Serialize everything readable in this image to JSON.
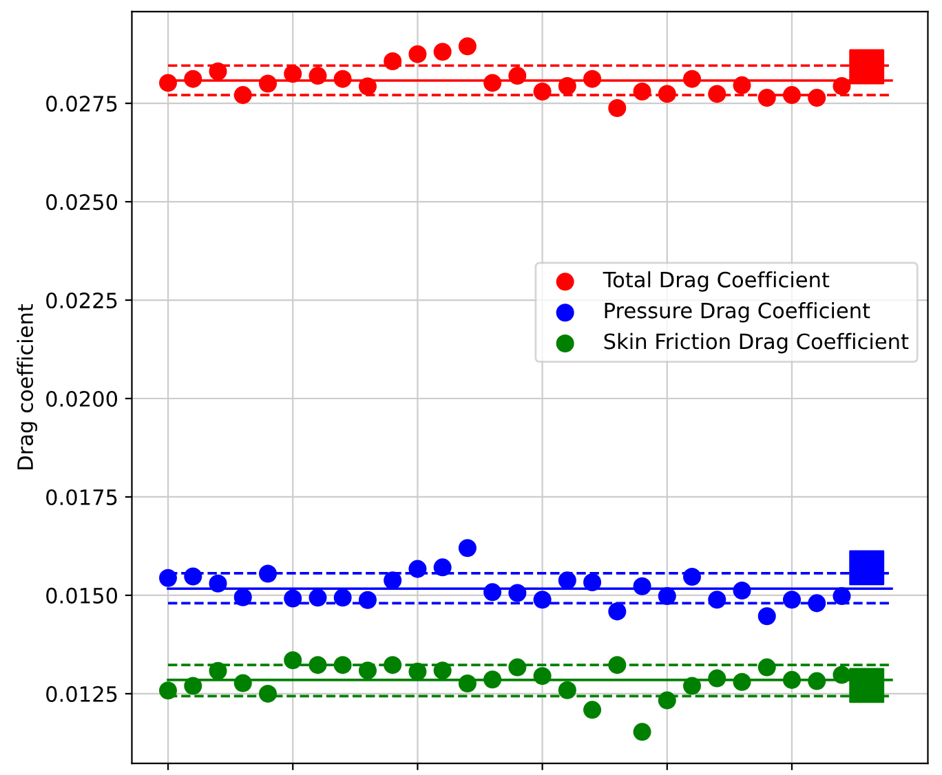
{
  "chart_data": {
    "type": "scatter",
    "ylabel": "Drag coefficient",
    "ylim": [
      0.01073,
      0.02983
    ],
    "yticks": [
      {
        "value": 0.0125,
        "label": "0.0125"
      },
      {
        "value": 0.015,
        "label": "0.0150"
      },
      {
        "value": 0.0175,
        "label": "0.0175"
      },
      {
        "value": 0.02,
        "label": "0.0200"
      },
      {
        "value": 0.0225,
        "label": "0.0225"
      },
      {
        "value": 0.025,
        "label": "0.0250"
      },
      {
        "value": 0.0275,
        "label": "0.0275"
      }
    ],
    "tick_labels": "y",
    "grid": true,
    "legend": "right",
    "marker": "circle",
    "categories": [
      null,
      null,
      null,
      null,
      null,
      null,
      null,
      null,
      null,
      null,
      null,
      null,
      null,
      null,
      null,
      null,
      null,
      null,
      null,
      null,
      null,
      null,
      null,
      null,
      null,
      null,
      null,
      null,
      null,
      null
    ],
    "series": [
      {
        "name": "Total Drag Coefficient",
        "color": "#ff0000",
        "values": [
          0.02802,
          0.02812,
          0.02831,
          0.02771,
          0.028,
          0.02825,
          0.0282,
          0.02812,
          0.02793,
          0.02857,
          0.02875,
          0.02881,
          0.02895,
          0.02802,
          0.0282,
          0.0278,
          0.02794,
          0.02812,
          0.02738,
          0.0278,
          0.02774,
          0.02812,
          0.02774,
          0.02796,
          0.02764,
          0.02771,
          0.02764,
          0.02794,
          null,
          null
        ]
      },
      {
        "name": "Pressure Drag Coefficient",
        "color": "#0000ff",
        "values": [
          0.01544,
          0.01548,
          0.0153,
          0.01495,
          0.01555,
          0.01492,
          0.01494,
          0.01494,
          0.01488,
          0.01538,
          0.01567,
          0.01571,
          0.0162,
          0.01508,
          0.01506,
          0.01489,
          0.01538,
          0.01533,
          0.01459,
          0.01523,
          0.01498,
          0.01547,
          0.01489,
          0.01512,
          0.01447,
          0.01489,
          0.0148,
          0.01498,
          null,
          null
        ]
      },
      {
        "name": "Skin Friction Drag Coefficient",
        "color": "#008000",
        "values": [
          0.01258,
          0.0127,
          0.01308,
          0.01277,
          0.0125,
          0.01335,
          0.01323,
          0.01323,
          0.01309,
          0.01323,
          0.01306,
          0.01309,
          0.01276,
          0.01286,
          0.01317,
          0.01295,
          0.01259,
          0.01209,
          0.01323,
          0.01153,
          0.01233,
          0.0127,
          0.01289,
          0.0128,
          0.01317,
          0.01285,
          0.01282,
          0.01298,
          null,
          null
        ]
      },
      {
        "color": "#ff0000",
        "marker": "square",
        "values": [
          null,
          null,
          null,
          null,
          null,
          null,
          null,
          null,
          null,
          null,
          null,
          null,
          null,
          null,
          null,
          null,
          null,
          null,
          null,
          null,
          null,
          null,
          null,
          null,
          null,
          null,
          null,
          null,
          0.02843,
          null
        ]
      },
      {
        "color": "#0000ff",
        "marker": "square",
        "values": [
          null,
          null,
          null,
          null,
          null,
          null,
          null,
          null,
          null,
          null,
          null,
          null,
          null,
          null,
          null,
          null,
          null,
          null,
          null,
          null,
          null,
          null,
          null,
          null,
          null,
          null,
          null,
          null,
          0.0157,
          null
        ]
      },
      {
        "color": "#008000",
        "marker": "square",
        "values": [
          null,
          null,
          null,
          null,
          null,
          null,
          null,
          null,
          null,
          null,
          null,
          null,
          null,
          null,
          null,
          null,
          null,
          null,
          null,
          null,
          null,
          null,
          null,
          null,
          null,
          null,
          null,
          null,
          0.01271,
          null
        ]
      }
    ],
    "ref_lines": [
      {
        "axis": "y",
        "value": 0.02808,
        "color": "#ff0000",
        "line_style": "solid"
      },
      {
        "axis": "y",
        "value": 0.02846,
        "color": "#ff0000",
        "line_style": "dashed"
      },
      {
        "axis": "y",
        "value": 0.02771,
        "color": "#ff0000",
        "line_style": "dashed"
      },
      {
        "axis": "y",
        "value": 0.01517,
        "color": "#0000ff",
        "line_style": "solid"
      },
      {
        "axis": "y",
        "value": 0.01556,
        "color": "#0000ff",
        "line_style": "dashed"
      },
      {
        "axis": "y",
        "value": 0.0148,
        "color": "#0000ff",
        "line_style": "dashed"
      },
      {
        "axis": "y",
        "value": 0.01285,
        "color": "#008000",
        "line_style": "solid"
      },
      {
        "axis": "y",
        "value": 0.01323,
        "color": "#008000",
        "line_style": "dashed"
      },
      {
        "axis": "y",
        "value": 0.01244,
        "color": "#008000",
        "line_style": "dashed"
      }
    ]
  }
}
